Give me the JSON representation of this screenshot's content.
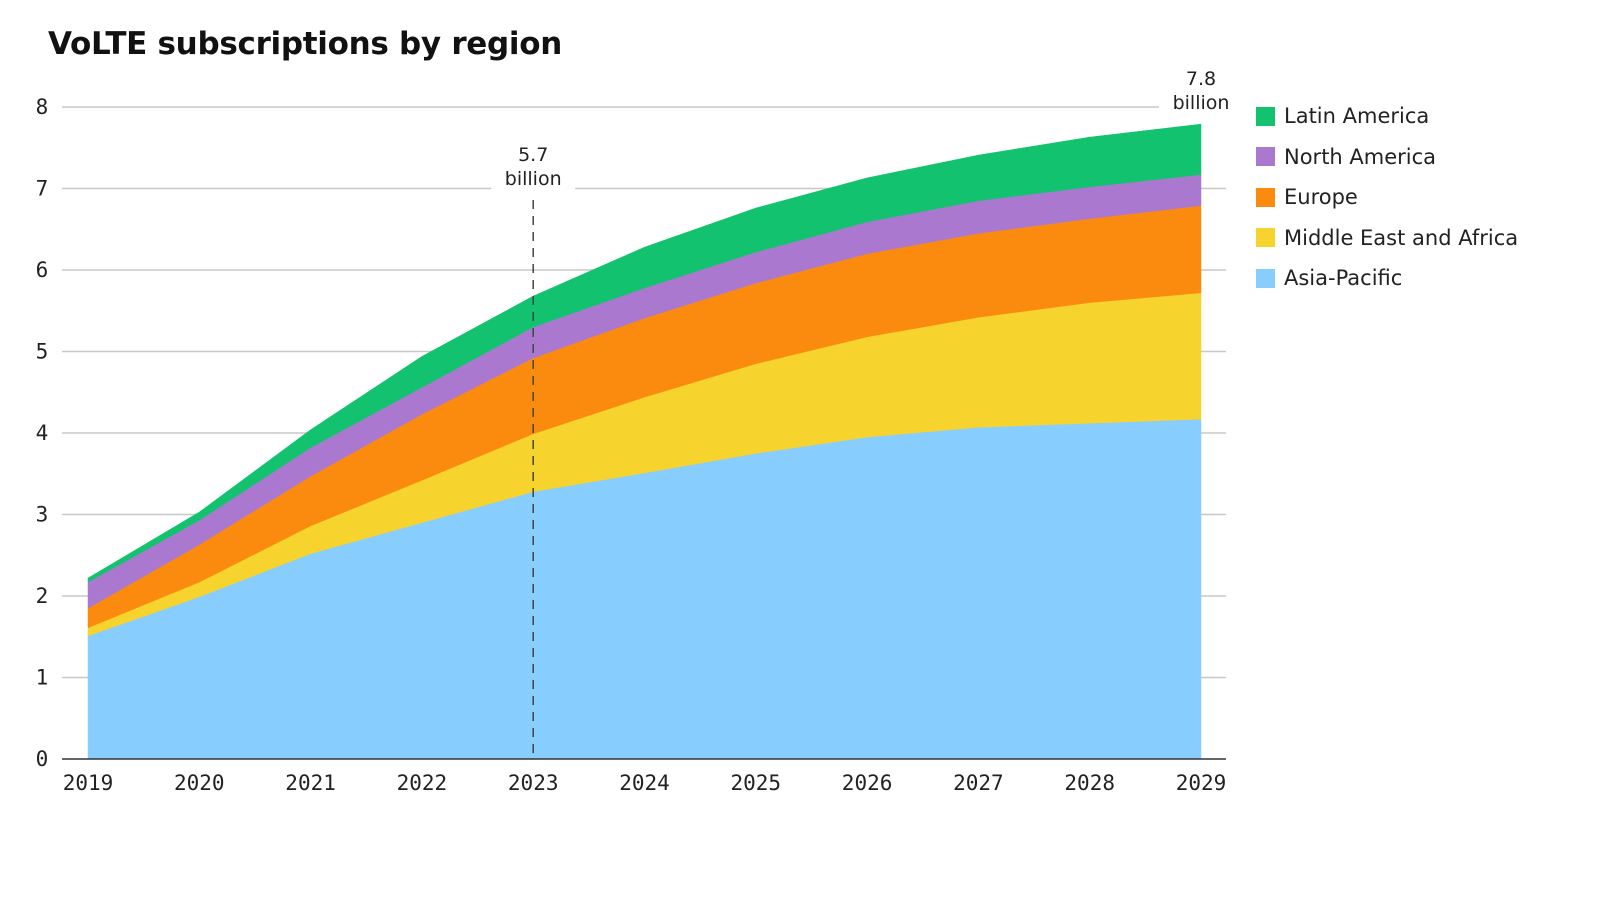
{
  "chart_data": {
    "type": "area",
    "stacked": true,
    "title": "VoLTE subscriptions by region",
    "xlabel": "",
    "ylabel": "",
    "categories": [
      "2019",
      "2020",
      "2021",
      "2022",
      "2023",
      "2024",
      "2025",
      "2026",
      "2027",
      "2028",
      "2029"
    ],
    "ylim": [
      0,
      8
    ],
    "yticks": [
      "0",
      "1",
      "2",
      "3",
      "4",
      "5",
      "6",
      "7",
      "8"
    ],
    "grid": true,
    "legend_position": "right",
    "series": [
      {
        "name": "Asia-Pacific",
        "color": "#87cdfd",
        "values": [
          1.51,
          1.99,
          2.52,
          2.9,
          3.28,
          3.51,
          3.75,
          3.95,
          4.07,
          4.12,
          4.17
        ]
      },
      {
        "name": "Middle East and Africa",
        "color": "#f7d32e",
        "values": [
          0.1,
          0.18,
          0.34,
          0.52,
          0.71,
          0.93,
          1.1,
          1.23,
          1.35,
          1.48,
          1.55
        ]
      },
      {
        "name": "Europe",
        "color": "#fb8b0e",
        "values": [
          0.24,
          0.46,
          0.61,
          0.81,
          0.93,
          0.97,
          0.99,
          1.02,
          1.03,
          1.03,
          1.07
        ]
      },
      {
        "name": "North America",
        "color": "#ab78d0",
        "values": [
          0.32,
          0.3,
          0.35,
          0.33,
          0.38,
          0.37,
          0.38,
          0.39,
          0.4,
          0.39,
          0.38
        ]
      },
      {
        "name": "Latin America",
        "color": "#12c26f",
        "values": [
          0.05,
          0.1,
          0.22,
          0.38,
          0.38,
          0.5,
          0.54,
          0.54,
          0.56,
          0.61,
          0.62
        ]
      }
    ],
    "legend_order": [
      "Latin America",
      "North America",
      "Europe",
      "Middle East and Africa",
      "Asia-Pacific"
    ],
    "annotations": [
      {
        "x": "2023",
        "value": "5.7",
        "unit": "billion",
        "dashed_line": true
      },
      {
        "x": "2029",
        "value": "7.8",
        "unit": "billion",
        "dashed_line": false
      }
    ]
  }
}
